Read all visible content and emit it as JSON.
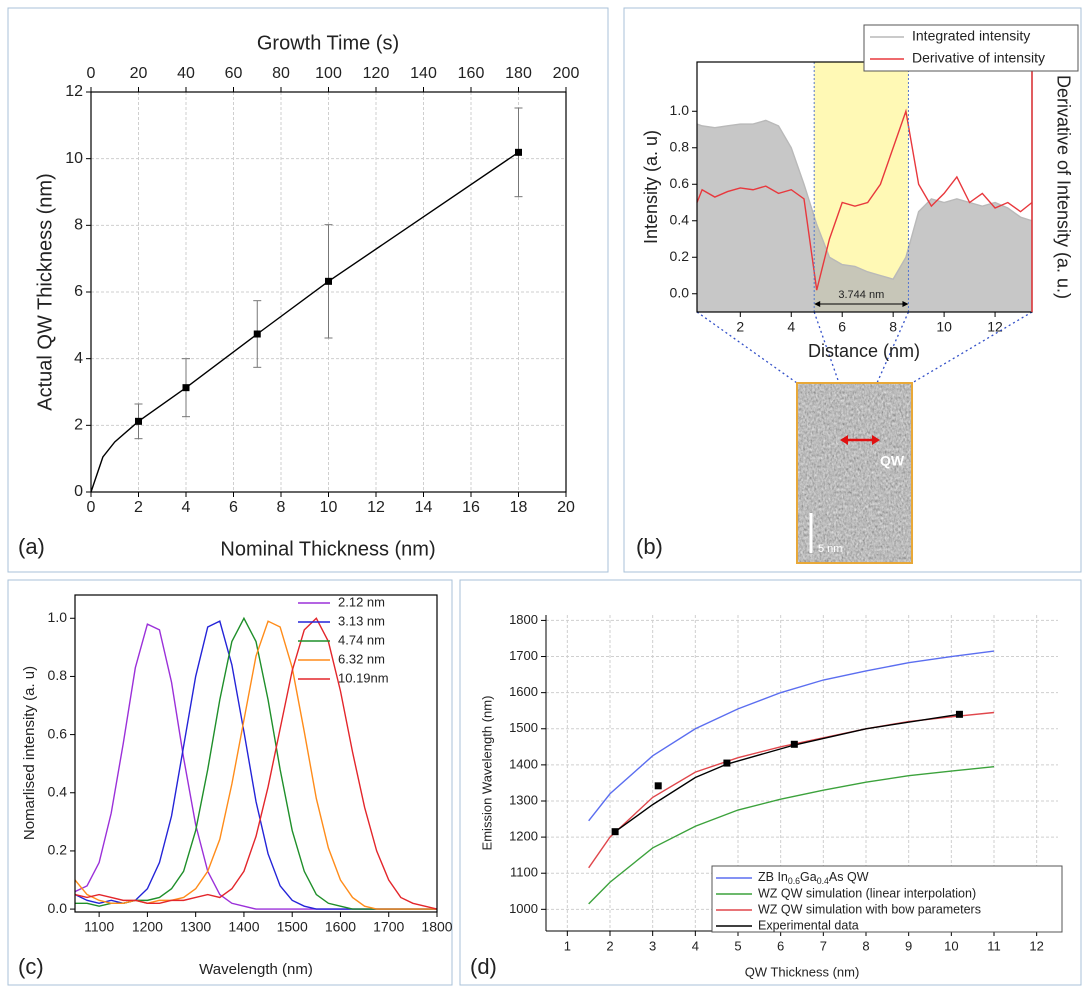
{
  "chart_data": [
    {
      "type": "line",
      "panel_label": "(a)",
      "x2label": "Growth Time (s)",
      "xlabel": "Nominal Thickness (nm)",
      "ylabel": "Actual QW Thickness (nm)",
      "xlim": [
        0,
        20
      ],
      "xticks": [
        0,
        2,
        4,
        6,
        8,
        10,
        12,
        14,
        16,
        18,
        20
      ],
      "x2lim": [
        0,
        200
      ],
      "x2ticks": [
        0,
        20,
        40,
        60,
        80,
        100,
        120,
        140,
        160,
        180,
        200
      ],
      "ylim": [
        0,
        12
      ],
      "yticks": [
        0,
        2,
        4,
        6,
        8,
        10,
        12
      ],
      "grid": true,
      "series": [
        {
          "color": "#000000",
          "x": [
            0,
            0.5,
            1,
            2,
            4,
            7,
            10,
            18
          ],
          "values": [
            0,
            1.05,
            1.5,
            2.12,
            3.13,
            4.74,
            6.32,
            10.19
          ]
        },
        {
          "color": "#000000",
          "marker": "square",
          "line": false,
          "x": [
            2,
            4,
            7,
            10,
            18
          ],
          "values": [
            2.12,
            3.13,
            4.74,
            6.32,
            10.19
          ],
          "errors": [
            0.52,
            0.87,
            1.0,
            1.7,
            1.33
          ]
        }
      ]
    },
    {
      "type": "line",
      "panel_label": "(b)",
      "xlabel": "Distance (nm)",
      "ylabel": "Intensity (a. u)",
      "y2label": "Derivative of Intensity (a. u.)",
      "xlim": [
        0.3,
        13.45
      ],
      "xticks": [
        2,
        4,
        6,
        8,
        10,
        12
      ],
      "ylim": [
        -0.1,
        1.27
      ],
      "yticks": [
        {
          "value": 0,
          "label": "0.0"
        },
        0.2,
        0.4,
        0.6,
        0.8,
        {
          "value": 1,
          "label": "1.0"
        }
      ],
      "grid": false,
      "legend": "upper right",
      "highlight": [
        4.9,
        8.6
      ],
      "annotation": "3.744 nm",
      "inset": {
        "label": "QW",
        "scale_bar": "5 nm"
      },
      "x": [
        0.3,
        0.5,
        1,
        1.5,
        2,
        2.5,
        3,
        3.5,
        4,
        4.5,
        5,
        5.5,
        6,
        6.5,
        7,
        7.5,
        8,
        8.5,
        9,
        9.5,
        10,
        10.5,
        11,
        11.5,
        12,
        12.5,
        13,
        13.45
      ],
      "series": [
        {
          "name": "Integrated intensity",
          "color": "#b9b9b9",
          "fill": true,
          "values": [
            0.93,
            0.92,
            0.91,
            0.92,
            0.93,
            0.93,
            0.95,
            0.92,
            0.8,
            0.6,
            0.38,
            0.2,
            0.16,
            0.15,
            0.12,
            0.1,
            0.08,
            0.2,
            0.45,
            0.52,
            0.5,
            0.52,
            0.5,
            0.48,
            0.5,
            0.47,
            0.42,
            0.4
          ]
        },
        {
          "name": "Derivative of intensity",
          "color": "#e8383d",
          "values": [
            0.5,
            0.57,
            0.53,
            0.56,
            0.58,
            0.57,
            0.59,
            0.55,
            0.57,
            0.52,
            0.02,
            0.3,
            0.5,
            0.48,
            0.5,
            0.6,
            0.8,
            1.0,
            0.6,
            0.48,
            0.55,
            0.64,
            0.5,
            0.55,
            0.47,
            0.5,
            0.45,
            0.5
          ]
        }
      ]
    },
    {
      "type": "line",
      "panel_label": "(c)",
      "xlabel": "Wavelength (nm)",
      "ylabel": "Nomarlised intensity (a. u)",
      "xlim": [
        1050,
        1800
      ],
      "xticks": [
        1100,
        1200,
        1300,
        1400,
        1500,
        1600,
        1700,
        1800
      ],
      "ylim": [
        -0.01,
        1.08
      ],
      "yticks": [
        {
          "value": 0,
          "label": "0.0"
        },
        0.2,
        0.4,
        0.6,
        0.8,
        {
          "value": 1,
          "label": "1.0"
        }
      ],
      "grid": false,
      "legend": "upper right",
      "x": [
        1050,
        1075,
        1100,
        1125,
        1150,
        1175,
        1200,
        1225,
        1250,
        1275,
        1300,
        1325,
        1350,
        1375,
        1400,
        1425,
        1450,
        1475,
        1500,
        1525,
        1550,
        1575,
        1600,
        1625,
        1650,
        1675,
        1700,
        1725,
        1750,
        1775,
        1800
      ],
      "series": [
        {
          "name": "2.12 nm",
          "color": "#9b30d9",
          "values": [
            0.06,
            0.08,
            0.16,
            0.33,
            0.57,
            0.83,
            0.98,
            0.96,
            0.78,
            0.52,
            0.29,
            0.13,
            0.05,
            0.02,
            0.01,
            0,
            0,
            0,
            0,
            0,
            0,
            0,
            0,
            0,
            0,
            0,
            0,
            0,
            0,
            0,
            0
          ]
        },
        {
          "name": "3.13 nm",
          "color": "#2424d8",
          "values": [
            0.05,
            0.03,
            0.02,
            0.03,
            0.02,
            0.03,
            0.07,
            0.16,
            0.32,
            0.56,
            0.8,
            0.97,
            0.99,
            0.84,
            0.61,
            0.37,
            0.19,
            0.08,
            0.03,
            0.01,
            0,
            0,
            0,
            0,
            0,
            0,
            0,
            0,
            0,
            0,
            0
          ]
        },
        {
          "name": "4.74 nm",
          "color": "#1f8f2a",
          "values": [
            0.02,
            0.02,
            0.01,
            0.02,
            0.02,
            0.03,
            0.03,
            0.04,
            0.07,
            0.13,
            0.27,
            0.48,
            0.72,
            0.92,
            1.0,
            0.92,
            0.72,
            0.48,
            0.27,
            0.13,
            0.05,
            0.02,
            0.01,
            0,
            0,
            0,
            0,
            0,
            0,
            0,
            0
          ]
        },
        {
          "name": "6.32 nm",
          "color": "#ff8c1a",
          "values": [
            0.1,
            0.05,
            0.03,
            0.02,
            0.02,
            0.03,
            0.02,
            0.03,
            0.03,
            0.04,
            0.07,
            0.13,
            0.24,
            0.43,
            0.65,
            0.87,
            0.99,
            0.97,
            0.83,
            0.61,
            0.38,
            0.21,
            0.1,
            0.04,
            0.01,
            0,
            0,
            0,
            0,
            0,
            0
          ]
        },
        {
          "name": "10.19nm",
          "color": "#e3262b",
          "values": [
            0.05,
            0.04,
            0.05,
            0.04,
            0.03,
            0.03,
            0.02,
            0.02,
            0.03,
            0.03,
            0.04,
            0.05,
            0.04,
            0.07,
            0.13,
            0.25,
            0.42,
            0.62,
            0.82,
            0.96,
            1.0,
            0.92,
            0.75,
            0.54,
            0.35,
            0.2,
            0.1,
            0.04,
            0.02,
            0.01,
            0
          ]
        }
      ]
    },
    {
      "type": "line",
      "panel_label": "(d)",
      "xlabel": "QW Thickness (nm)",
      "ylabel": "Emission Wavelength (nm)",
      "xlim": [
        0.5,
        12.5
      ],
      "xticks": [
        1,
        2,
        3,
        4,
        5,
        6,
        7,
        8,
        9,
        10,
        11,
        12
      ],
      "ylim": [
        940,
        1815
      ],
      "yticks": [
        1000,
        1100,
        1200,
        1300,
        1400,
        1500,
        1600,
        1700,
        1800
      ],
      "grid": true,
      "legend": "lower right",
      "x": [
        1.5,
        2,
        3,
        4,
        5,
        6,
        7,
        8,
        9,
        10,
        11
      ],
      "series": [
        {
          "name": "ZB In0.6Ga0.4As QW",
          "color": "#5b6ef0",
          "values": [
            1245,
            1320,
            1425,
            1500,
            1555,
            1600,
            1635,
            1660,
            1683,
            1700,
            1715
          ]
        },
        {
          "name": "WZ QW simulation (linear interpolation)",
          "color": "#3ca23c",
          "values": [
            1015,
            1075,
            1170,
            1230,
            1275,
            1305,
            1330,
            1352,
            1370,
            1383,
            1395
          ]
        },
        {
          "name": "WZ QW simulation with bow parameters",
          "color": "#e0474c",
          "values": [
            1115,
            1200,
            1310,
            1380,
            1420,
            1450,
            1475,
            1500,
            1520,
            1533,
            1545
          ]
        },
        {
          "name": "Experimental data",
          "color": "#000000",
          "x": [
            2.12,
            3,
            4,
            4.74,
            6.32,
            8,
            10.19
          ],
          "values": [
            1215,
            1290,
            1365,
            1402,
            1455,
            1500,
            1540
          ]
        },
        {
          "color": "#000000",
          "marker": "square",
          "line": false,
          "x": [
            2.12,
            3.13,
            4.74,
            6.32,
            10.19
          ],
          "values": [
            1215,
            1342,
            1405,
            1457,
            1540
          ]
        }
      ]
    }
  ]
}
